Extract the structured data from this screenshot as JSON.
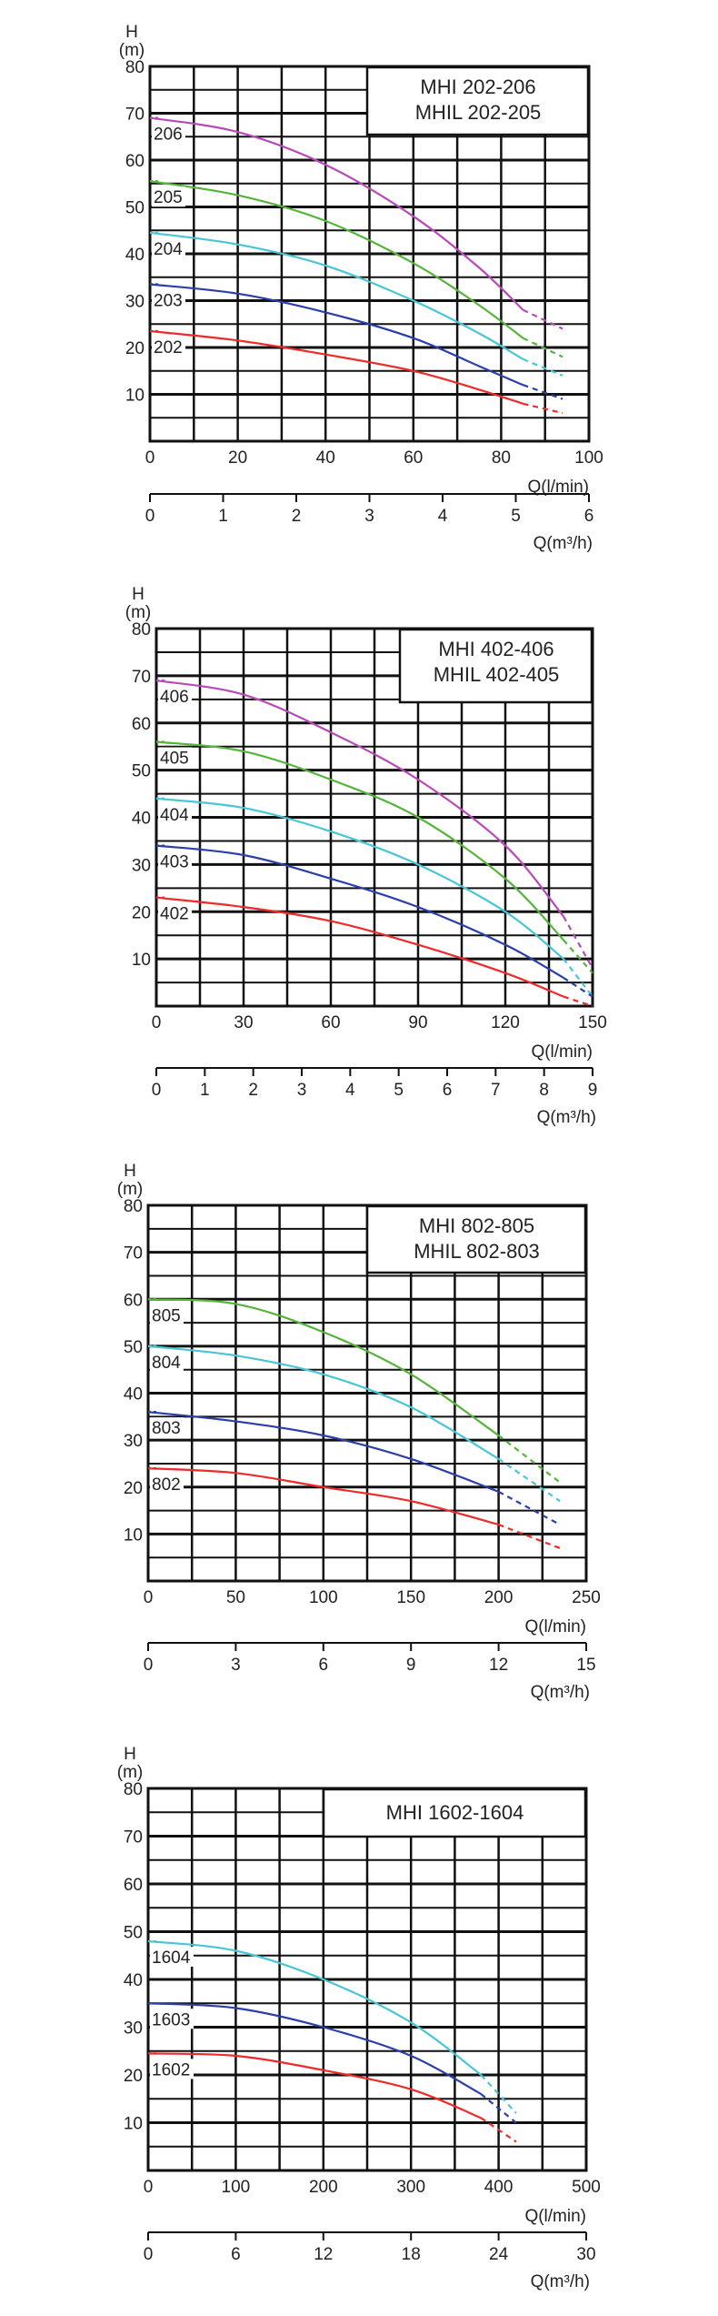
{
  "chart_data": [
    {
      "type": "line",
      "title_lines": [
        "MHI   202-206",
        "MHIL 202-205"
      ],
      "ylabel_top": "H",
      "ylabel_unit": "(m)",
      "xlabel": "Q(l/min)",
      "xlabel2": "Q(m³/h)",
      "ylim": [
        0,
        80
      ],
      "xlim": [
        0,
        100
      ],
      "xlim2": [
        0,
        6
      ],
      "yticks": [
        10,
        20,
        30,
        40,
        50,
        60,
        70,
        80
      ],
      "xticks": [
        0,
        20,
        40,
        60,
        80,
        100
      ],
      "xticks2": [
        0,
        1,
        2,
        3,
        4,
        5,
        6
      ],
      "grid": true,
      "series": [
        {
          "name": "206",
          "color": "#b84ab8",
          "x": [
            0,
            20,
            40,
            60,
            75,
            85,
            94
          ],
          "y": [
            69,
            66,
            59,
            48,
            37,
            28,
            24
          ]
        },
        {
          "name": "205",
          "color": "#55b43a",
          "x": [
            0,
            20,
            40,
            60,
            75,
            85,
            94
          ],
          "y": [
            55.5,
            52.5,
            47,
            38,
            29,
            22,
            18
          ]
        },
        {
          "name": "204",
          "color": "#48c6d6",
          "x": [
            0,
            20,
            40,
            60,
            75,
            85,
            94
          ],
          "y": [
            44.5,
            42,
            37.5,
            30,
            23,
            17.5,
            14
          ]
        },
        {
          "name": "203",
          "color": "#2a3fa8",
          "x": [
            0,
            20,
            40,
            60,
            75,
            85,
            94
          ],
          "y": [
            33.5,
            31.5,
            27.5,
            22,
            16,
            12,
            9
          ]
        },
        {
          "name": "202",
          "color": "#ee2a2a",
          "x": [
            0,
            20,
            40,
            60,
            75,
            85,
            94
          ],
          "y": [
            23.5,
            21.5,
            18.5,
            15,
            11,
            8,
            6
          ]
        }
      ]
    },
    {
      "type": "line",
      "title_lines": [
        "MHI   402-406",
        "MHIL 402-405"
      ],
      "ylabel_top": "H",
      "ylabel_unit": "(m)",
      "xlabel": "Q(l/min)",
      "xlabel2": "Q(m³/h)",
      "ylim": [
        0,
        80
      ],
      "xlim": [
        0,
        150
      ],
      "xlim2": [
        0,
        9
      ],
      "yticks": [
        10,
        20,
        30,
        40,
        50,
        60,
        70,
        80
      ],
      "xticks": [
        0,
        30,
        60,
        90,
        120,
        150
      ],
      "xticks2": [
        0,
        1,
        2,
        3,
        4,
        5,
        6,
        7,
        8,
        9
      ],
      "grid": true,
      "series": [
        {
          "name": "406",
          "color": "#b84ab8",
          "x": [
            0,
            30,
            60,
            90,
            120,
            140,
            150
          ],
          "y": [
            69,
            66,
            58,
            48,
            34,
            19,
            8
          ]
        },
        {
          "name": "405",
          "color": "#55b43a",
          "x": [
            0,
            30,
            60,
            90,
            120,
            140,
            150
          ],
          "y": [
            56,
            54,
            48,
            40,
            27,
            14,
            7
          ]
        },
        {
          "name": "404",
          "color": "#48c6d6",
          "x": [
            0,
            30,
            60,
            90,
            120,
            140,
            150
          ],
          "y": [
            44,
            42,
            37,
            30,
            20,
            10,
            2
          ]
        },
        {
          "name": "403",
          "color": "#2a3fa8",
          "x": [
            0,
            30,
            60,
            90,
            120,
            140,
            150
          ],
          "y": [
            34,
            32,
            27,
            21,
            13,
            6,
            2
          ]
        },
        {
          "name": "402",
          "color": "#ee2a2a",
          "x": [
            0,
            30,
            60,
            90,
            120,
            140,
            150
          ],
          "y": [
            23,
            21,
            18,
            13,
            7,
            2,
            0
          ]
        }
      ]
    },
    {
      "type": "line",
      "title_lines": [
        "MHI   802-805",
        "MHIL 802-803"
      ],
      "ylabel_top": "H",
      "ylabel_unit": "(m)",
      "xlabel": "Q(l/min)",
      "xlabel2": "Q(m³/h)",
      "ylim": [
        0,
        80
      ],
      "xlim": [
        0,
        250
      ],
      "xlim2": [
        0,
        15
      ],
      "yticks": [
        10,
        20,
        30,
        40,
        50,
        60,
        70,
        80
      ],
      "xticks": [
        0,
        50,
        100,
        150,
        200,
        250
      ],
      "xticks2": [
        0,
        3,
        6,
        9,
        12,
        15
      ],
      "grid": true,
      "series": [
        {
          "name": "805",
          "color": "#55b43a",
          "x": [
            0,
            50,
            100,
            150,
            200,
            235
          ],
          "y": [
            60,
            59,
            53,
            44,
            31,
            21
          ]
        },
        {
          "name": "804",
          "color": "#48c6d6",
          "x": [
            0,
            50,
            100,
            150,
            200,
            235
          ],
          "y": [
            50,
            48,
            44,
            37,
            26,
            17
          ]
        },
        {
          "name": "803",
          "color": "#2a3fa8",
          "x": [
            0,
            50,
            100,
            150,
            200,
            235
          ],
          "y": [
            36,
            34,
            31,
            26,
            19,
            12
          ]
        },
        {
          "name": "802",
          "color": "#ee2a2a",
          "x": [
            0,
            50,
            100,
            150,
            200,
            235
          ],
          "y": [
            24,
            23,
            20,
            17,
            12,
            7
          ]
        }
      ]
    },
    {
      "type": "line",
      "title_lines": [
        "MHI 1602-1604"
      ],
      "ylabel_top": "H",
      "ylabel_unit": "(m)",
      "xlabel": "Q(l/min)",
      "xlabel2": "Q(m³/h)",
      "ylim": [
        0,
        80
      ],
      "xlim": [
        0,
        500
      ],
      "xlim2": [
        0,
        30
      ],
      "yticks": [
        10,
        20,
        30,
        40,
        50,
        60,
        70,
        80
      ],
      "xticks": [
        0,
        100,
        200,
        300,
        400,
        500
      ],
      "xticks2": [
        0,
        6,
        12,
        18,
        24,
        30
      ],
      "grid": true,
      "series": [
        {
          "name": "1604",
          "color": "#48c6d6",
          "x": [
            0,
            100,
            200,
            300,
            380,
            420
          ],
          "y": [
            48,
            46,
            40,
            31,
            20,
            12
          ]
        },
        {
          "name": "1603",
          "color": "#2a3fa8",
          "x": [
            0,
            100,
            200,
            300,
            380,
            420
          ],
          "y": [
            35,
            34,
            30,
            24,
            16,
            10
          ]
        },
        {
          "name": "1602",
          "color": "#ee2a2a",
          "x": [
            0,
            100,
            200,
            300,
            380,
            420
          ],
          "y": [
            24.5,
            24,
            21,
            17,
            11,
            6
          ]
        }
      ]
    }
  ]
}
